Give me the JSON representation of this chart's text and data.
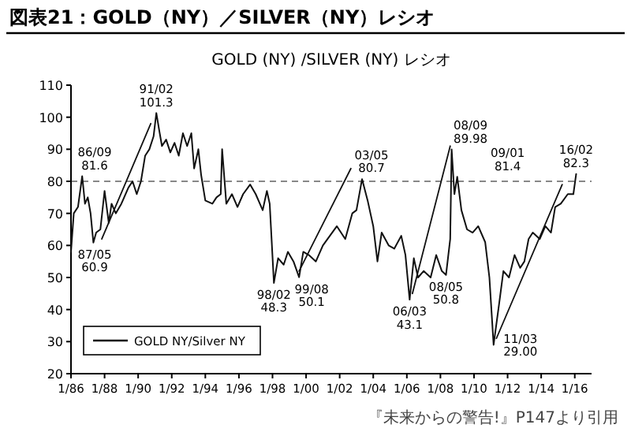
{
  "chart_data": {
    "type": "line",
    "title": "図表21：GOLD（NY）／SILVER（NY）レシオ",
    "subtitle": "GOLD (NY) /SILVER (NY) レシオ",
    "xlim": [
      "1986-01",
      "2017-01"
    ],
    "xticks": [
      {
        "value": "1986-01",
        "label": "1/86"
      },
      {
        "value": "1988-01",
        "label": "1/88"
      },
      {
        "value": "1990-01",
        "label": "1/90"
      },
      {
        "value": "1992-01",
        "label": "1/92"
      },
      {
        "value": "1994-01",
        "label": "1/94"
      },
      {
        "value": "1996-01",
        "label": "1/96"
      },
      {
        "value": "1998-01",
        "label": "1/98"
      },
      {
        "value": "2000-01",
        "label": "1/00"
      },
      {
        "value": "2002-01",
        "label": "1/02"
      },
      {
        "value": "2004-01",
        "label": "1/04"
      },
      {
        "value": "2006-01",
        "label": "1/06"
      },
      {
        "value": "2008-01",
        "label": "1/08"
      },
      {
        "value": "2010-01",
        "label": "1/10"
      },
      {
        "value": "2012-01",
        "label": "1/12"
      },
      {
        "value": "2014-01",
        "label": "1/14"
      },
      {
        "value": "2016-01",
        "label": "1/16"
      }
    ],
    "ylim": [
      20,
      110
    ],
    "yticks": [
      20,
      30,
      40,
      50,
      60,
      70,
      80,
      90,
      100,
      110
    ],
    "grid": false,
    "legend": "bottom left",
    "ref_lines": [
      {
        "axis": "y",
        "value": 80,
        "color": "#888888",
        "line_style": "dashed"
      }
    ],
    "series": [
      {
        "name": "GOLD NY/Silver NY",
        "color": "#111111",
        "x": [
          "1986-01",
          "1986-03",
          "1986-06",
          "1986-09",
          "1986-11",
          "1987-01",
          "1987-03",
          "1987-05",
          "1987-07",
          "1987-10",
          "1988-01",
          "1988-04",
          "1988-06",
          "1988-09",
          "1989-01",
          "1989-06",
          "1989-09",
          "1989-12",
          "1990-03",
          "1990-06",
          "1990-09",
          "1990-12",
          "1991-02",
          "1991-04",
          "1991-06",
          "1991-09",
          "1991-12",
          "1992-03",
          "1992-06",
          "1992-09",
          "1992-12",
          "1993-03",
          "1993-05",
          "1993-08",
          "1993-10",
          "1994-01",
          "1994-06",
          "1994-09",
          "1994-12",
          "1995-01",
          "1995-04",
          "1995-08",
          "1995-12",
          "1996-04",
          "1996-09",
          "1997-01",
          "1997-06",
          "1997-09",
          "1997-11",
          "1998-02",
          "1998-05",
          "1998-09",
          "1998-12",
          "1999-04",
          "1999-08",
          "1999-11",
          "2000-03",
          "2000-08",
          "2001-01",
          "2001-06",
          "2001-11",
          "2002-05",
          "2002-10",
          "2003-01",
          "2003-05",
          "2003-09",
          "2004-01",
          "2004-04",
          "2004-07",
          "2004-12",
          "2005-04",
          "2005-09",
          "2005-12",
          "2006-03",
          "2006-06",
          "2006-09",
          "2007-01",
          "2007-06",
          "2007-10",
          "2008-02",
          "2008-05",
          "2008-08",
          "2008-09",
          "2008-11",
          "2009-01",
          "2009-04",
          "2009-08",
          "2009-12",
          "2010-04",
          "2010-09",
          "2010-12",
          "2011-03",
          "2011-07",
          "2011-10",
          "2012-02",
          "2012-06",
          "2012-10",
          "2013-01",
          "2013-04",
          "2013-07",
          "2013-12",
          "2014-04",
          "2014-08",
          "2014-11",
          "2015-03",
          "2015-08",
          "2015-12",
          "2016-02"
        ],
        "values": [
          58,
          70,
          72,
          81.6,
          73,
          75,
          70,
          60.9,
          64,
          65,
          77,
          67,
          73,
          70,
          73,
          78,
          80,
          76,
          80,
          88,
          90,
          94,
          101.3,
          96,
          91,
          93,
          89,
          92,
          88,
          95,
          91,
          95,
          84,
          90,
          82,
          74,
          73,
          75,
          76,
          90,
          73,
          76,
          72,
          76,
          79,
          76,
          71,
          77,
          73,
          48.3,
          56,
          54,
          58,
          55,
          50.1,
          58,
          57,
          55,
          60,
          63,
          66,
          62,
          70,
          71,
          80.7,
          74,
          66,
          55,
          64,
          60,
          59,
          63,
          57,
          43.1,
          56,
          50,
          52,
          50,
          57,
          52,
          50.8,
          62,
          89.98,
          76,
          81.4,
          71,
          65,
          64,
          66,
          61,
          50,
          29.0,
          42,
          52,
          50,
          57,
          53,
          55,
          62,
          64,
          62,
          66,
          64,
          72,
          73,
          76,
          76,
          82.3
        ]
      },
      {
        "type": "line",
        "color": "#111111",
        "x": [
          "1987-11",
          "1990-10"
        ],
        "values": [
          62,
          98
        ]
      },
      {
        "type": "line",
        "color": "#111111",
        "x": [
          "1999-08",
          "2002-09"
        ],
        "values": [
          52,
          84
        ]
      },
      {
        "type": "line",
        "color": "#111111",
        "x": [
          "2006-05",
          "2008-08"
        ],
        "values": [
          45,
          91
        ]
      },
      {
        "type": "line",
        "color": "#111111",
        "x": [
          "2011-05",
          "2015-04"
        ],
        "values": [
          31,
          79
        ]
      }
    ],
    "annotations": [
      {
        "text": "86/09\n81.6",
        "x": "1986-09",
        "y": 81.6
      },
      {
        "text": "87/05\n60.9",
        "x": "1987-05",
        "y": 60.9
      },
      {
        "text": "91/02\n101.3",
        "x": "1991-02",
        "y": 101.3
      },
      {
        "text": "98/02\n48.3",
        "x": "1998-02",
        "y": 48.3
      },
      {
        "text": "99/08\n50.1",
        "x": "1999-08",
        "y": 50.1
      },
      {
        "text": "03/05\n80.7",
        "x": "2003-05",
        "y": 80.7
      },
      {
        "text": "06/03\n43.1",
        "x": "2006-03",
        "y": 43.1
      },
      {
        "text": "08/05\n50.8",
        "x": "2008-05",
        "y": 50.8
      },
      {
        "text": "08/09\n89.98",
        "x": "2008-09",
        "y": 89.98
      },
      {
        "text": "09/01\n81.4",
        "x": "2009-01",
        "y": 81.4
      },
      {
        "text": "11/03\n29.00",
        "x": "2011-03",
        "y": 29.0
      },
      {
        "text": "16/02\n82.3",
        "x": "2016-02",
        "y": 82.3
      },
      "『未来からの警告!』P147より引用"
    ]
  }
}
